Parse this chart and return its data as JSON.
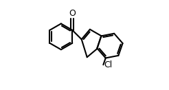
{
  "bg_color": "#ffffff",
  "line_color": "#000000",
  "line_width": 1.5,
  "figsize": [
    2.46,
    1.31
  ],
  "dpi": 100,
  "bl": 0.78
}
